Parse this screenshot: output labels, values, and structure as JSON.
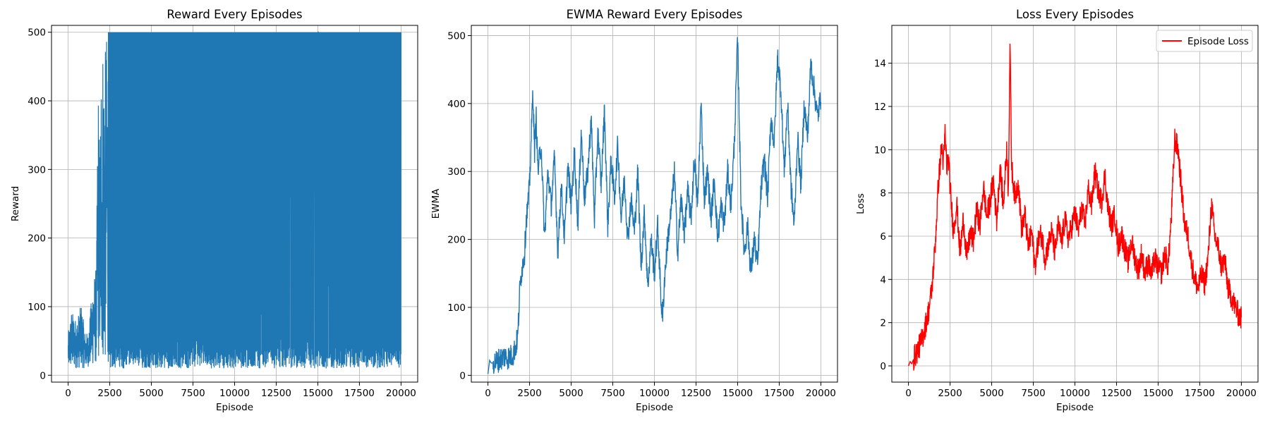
{
  "chart_data": [
    {
      "type": "line",
      "title": "Reward Every Episodes",
      "xlabel": "Episode",
      "ylabel": "Reward",
      "xlim": [
        -1000,
        21000
      ],
      "ylim": [
        -10,
        510
      ],
      "xticks": [
        0,
        2500,
        5000,
        7500,
        10000,
        12500,
        15000,
        17500,
        20000
      ],
      "yticks": [
        0,
        100,
        200,
        300,
        400,
        500
      ],
      "grid": true,
      "legend": null,
      "series": [
        {
          "color": "#1f77b4",
          "style": "dense-oscillation",
          "x_range": [
            0,
            20000
          ],
          "envelope_x": [
            0,
            200,
            500,
            800,
            1000,
            1200,
            1500,
            1700,
            1800,
            1900,
            2000,
            2100,
            2200,
            2300,
            2500,
            20000
          ],
          "envelope_min": [
            8,
            8,
            10,
            10,
            10,
            12,
            14,
            16,
            18,
            20,
            10,
            10,
            10,
            10,
            10,
            10
          ],
          "envelope_max": [
            62,
            95,
            80,
            105,
            65,
            60,
            140,
            160,
            450,
            320,
            500,
            500,
            460,
            500,
            500,
            500
          ]
        }
      ]
    },
    {
      "type": "line",
      "title": "EWMA Reward Every Episodes",
      "xlabel": "Episode",
      "ylabel": "EWMA",
      "xlim": [
        -1000,
        21000
      ],
      "ylim": [
        -10,
        515
      ],
      "xticks": [
        0,
        2500,
        5000,
        7500,
        10000,
        12500,
        15000,
        17500,
        20000
      ],
      "yticks": [
        0,
        100,
        200,
        300,
        400,
        500
      ],
      "grid": true,
      "legend": null,
      "series": [
        {
          "color": "#1f77b4",
          "x": [
            0,
            100,
            200,
            500,
            800,
            1000,
            1200,
            1500,
            1700,
            1800,
            1900,
            2000,
            2100,
            2200,
            2300,
            2400,
            2500,
            2600,
            2700,
            2800,
            2900,
            3000,
            3200,
            3400,
            3600,
            3800,
            4000,
            4200,
            4400,
            4600,
            4800,
            5000,
            5200,
            5400,
            5600,
            5800,
            6000,
            6200,
            6400,
            6600,
            6800,
            7000,
            7200,
            7400,
            7600,
            7800,
            8000,
            8200,
            8400,
            8600,
            8800,
            9000,
            9200,
            9400,
            9600,
            9800,
            10000,
            10200,
            10400,
            10500,
            10600,
            10800,
            11000,
            11200,
            11400,
            11600,
            11800,
            12000,
            12200,
            12400,
            12600,
            12800,
            13000,
            13200,
            13400,
            13600,
            13800,
            14000,
            14200,
            14400,
            14600,
            14800,
            15000,
            15200,
            15400,
            15600,
            15800,
            16000,
            16200,
            16400,
            16600,
            16800,
            17000,
            17200,
            17400,
            17600,
            17800,
            18000,
            18200,
            18400,
            18600,
            18800,
            19000,
            19200,
            19400,
            19600,
            19800,
            20000
          ],
          "y": [
            2,
            22,
            18,
            20,
            25,
            28,
            26,
            30,
            45,
            60,
            120,
            150,
            165,
            180,
            230,
            250,
            280,
            350,
            420,
            330,
            380,
            300,
            340,
            200,
            300,
            250,
            320,
            180,
            280,
            200,
            310,
            250,
            330,
            220,
            360,
            260,
            300,
            380,
            230,
            360,
            280,
            390,
            220,
            320,
            260,
            340,
            230,
            290,
            200,
            260,
            210,
            300,
            160,
            240,
            130,
            200,
            150,
            220,
            110,
            85,
            140,
            200,
            240,
            300,
            180,
            260,
            210,
            270,
            230,
            320,
            250,
            400,
            260,
            300,
            230,
            290,
            200,
            250,
            220,
            300,
            250,
            340,
            495,
            260,
            180,
            220,
            150,
            200,
            160,
            270,
            320,
            260,
            380,
            340,
            470,
            420,
            300,
            400,
            280,
            220,
            350,
            280,
            400,
            350,
            460,
            420,
            380,
            410
          ]
        }
      ]
    },
    {
      "type": "line",
      "title": "Loss Every Episodes",
      "xlabel": "Episode",
      "ylabel": "Loss",
      "xlim": [
        -1000,
        21000
      ],
      "ylim": [
        -0.75,
        15.75
      ],
      "xticks": [
        0,
        2500,
        5000,
        7500,
        10000,
        12500,
        15000,
        17500,
        20000
      ],
      "yticks": [
        0,
        2,
        4,
        6,
        8,
        10,
        12,
        14
      ],
      "grid": true,
      "legend": {
        "position": "top-right",
        "entries": [
          {
            "label": "Episode Loss",
            "color": "#ff0000"
          }
        ]
      },
      "series": [
        {
          "name": "Episode Loss",
          "color": "#ff0000",
          "x": [
            0,
            100,
            200,
            400,
            600,
            800,
            1000,
            1200,
            1400,
            1600,
            1800,
            2000,
            2100,
            2200,
            2300,
            2400,
            2500,
            2700,
            2900,
            3100,
            3300,
            3500,
            3700,
            3900,
            4100,
            4300,
            4500,
            4700,
            4900,
            5100,
            5300,
            5500,
            5700,
            5900,
            6000,
            6100,
            6200,
            6400,
            6600,
            6800,
            7000,
            7200,
            7400,
            7600,
            7800,
            8000,
            8200,
            8400,
            8600,
            8800,
            9000,
            9200,
            9400,
            9600,
            9800,
            10000,
            10200,
            10400,
            10600,
            10800,
            11000,
            11200,
            11400,
            11600,
            11800,
            12000,
            12200,
            12400,
            12600,
            12800,
            13000,
            13200,
            13400,
            13600,
            13800,
            14000,
            14200,
            14400,
            14600,
            14800,
            15000,
            15200,
            15400,
            15600,
            15800,
            16000,
            16200,
            16400,
            16600,
            16800,
            17000,
            17200,
            17400,
            17600,
            17800,
            18000,
            18200,
            18400,
            18600,
            18800,
            19000,
            19200,
            19400,
            19600,
            19800,
            20000
          ],
          "y": [
            0,
            0.2,
            0.1,
            0.5,
            0.8,
            1.2,
            1.8,
            2.5,
            3.5,
            5.5,
            8.5,
            10.2,
            9.3,
            10.8,
            9.2,
            9.6,
            8.3,
            6.2,
            7.5,
            5.2,
            6.8,
            5.0,
            6.1,
            5.8,
            7.2,
            6.5,
            8.3,
            6.9,
            7.6,
            8.6,
            6.7,
            9.2,
            7.4,
            10.1,
            8.0,
            15.0,
            9.2,
            7.8,
            8.5,
            6.3,
            7.0,
            5.5,
            6.2,
            4.6,
            5.8,
            6.1,
            5.0,
            5.6,
            6.2,
            5.2,
            6.5,
            5.7,
            6.8,
            5.9,
            6.4,
            7.1,
            6.2,
            7.3,
            6.5,
            8.2,
            7.4,
            9.0,
            8.1,
            7.6,
            8.8,
            7.2,
            6.5,
            7.0,
            5.5,
            6.1,
            5.4,
            4.8,
            5.8,
            5.0,
            4.4,
            5.2,
            4.3,
            4.8,
            4.2,
            5.0,
            4.5,
            4.3,
            5.2,
            4.6,
            7.0,
            10.5,
            10.0,
            8.2,
            6.5,
            6.0,
            4.8,
            4.0,
            3.6,
            4.2,
            3.8,
            5.0,
            7.5,
            6.0,
            5.5,
            4.6,
            4.9,
            3.6,
            3.2,
            2.8,
            2.4,
            2.2
          ]
        }
      ]
    }
  ]
}
